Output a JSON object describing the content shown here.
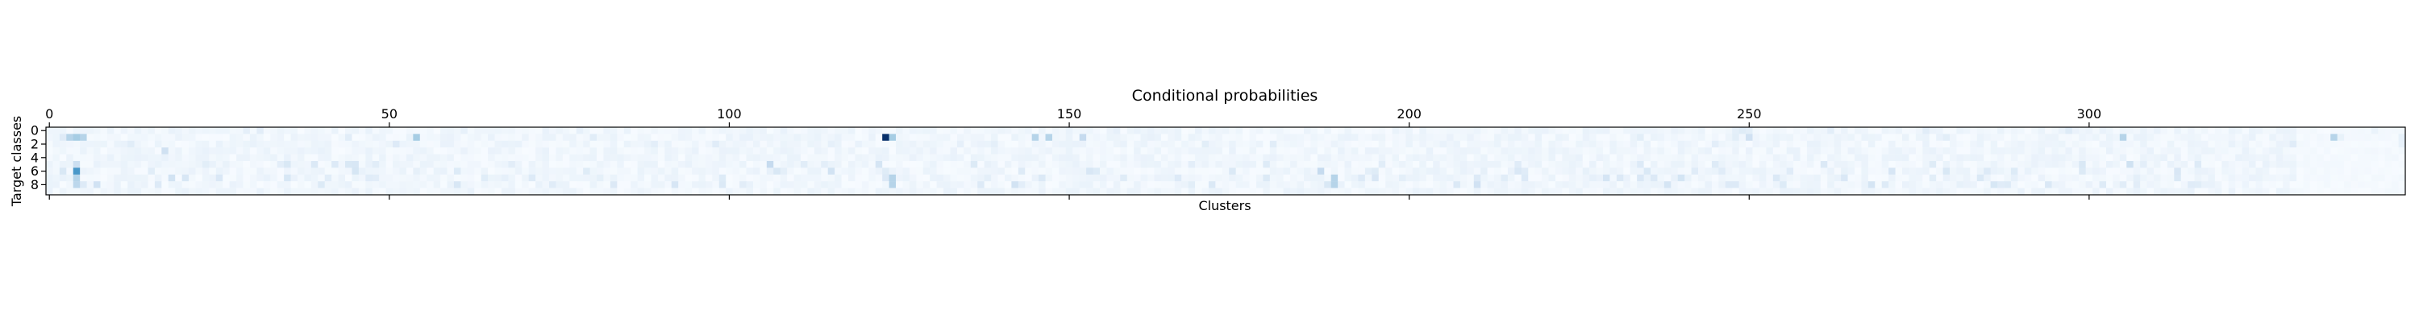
{
  "chart_data": {
    "type": "heatmap",
    "title": "Conditional probabilities",
    "xlabel": "Clusters",
    "ylabel": "Target classes",
    "x_ticks": [
      0,
      50,
      100,
      150,
      200,
      250,
      300
    ],
    "y_ticks": [
      0,
      2,
      4,
      6,
      8
    ],
    "x_range": [
      -0.5,
      346.5
    ],
    "y_range": [
      -0.5,
      9.5
    ],
    "n_rows": 10,
    "n_cols": 347,
    "colormap": "Blues",
    "colormap_stops": [
      "#f7fbff",
      "#deebf7",
      "#c6dbef",
      "#9ecae1",
      "#6baed6",
      "#4292c6",
      "#2171b5",
      "#08519c",
      "#08306b"
    ],
    "hotspots": [
      {
        "row": 1,
        "col": 123,
        "value": 1.0
      },
      {
        "row": 1,
        "col": 124,
        "value": 0.35
      },
      {
        "row": 1,
        "col": 3,
        "value": 0.3
      },
      {
        "row": 1,
        "col": 4,
        "value": 0.35
      },
      {
        "row": 1,
        "col": 5,
        "value": 0.3
      },
      {
        "row": 1,
        "col": 54,
        "value": 0.35
      },
      {
        "row": 1,
        "col": 145,
        "value": 0.3
      },
      {
        "row": 1,
        "col": 147,
        "value": 0.3
      },
      {
        "row": 1,
        "col": 152,
        "value": 0.25
      },
      {
        "row": 1,
        "col": 305,
        "value": 0.3
      },
      {
        "row": 1,
        "col": 336,
        "value": 0.3
      },
      {
        "row": 6,
        "col": 4,
        "value": 0.6
      },
      {
        "row": 5,
        "col": 4,
        "value": 0.22
      },
      {
        "row": 7,
        "col": 4,
        "value": 0.3
      },
      {
        "row": 8,
        "col": 4,
        "value": 0.28
      },
      {
        "row": 7,
        "col": 124,
        "value": 0.3
      },
      {
        "row": 8,
        "col": 124,
        "value": 0.3
      },
      {
        "row": 7,
        "col": 189,
        "value": 0.3
      },
      {
        "row": 8,
        "col": 189,
        "value": 0.3
      },
      {
        "row": 6,
        "col": 187,
        "value": 0.25
      },
      {
        "row": 5,
        "col": 106,
        "value": 0.25
      },
      {
        "row": 3,
        "col": 17,
        "value": 0.2
      },
      {
        "row": 1,
        "col": 250,
        "value": 0.2
      }
    ],
    "grid": false
  }
}
